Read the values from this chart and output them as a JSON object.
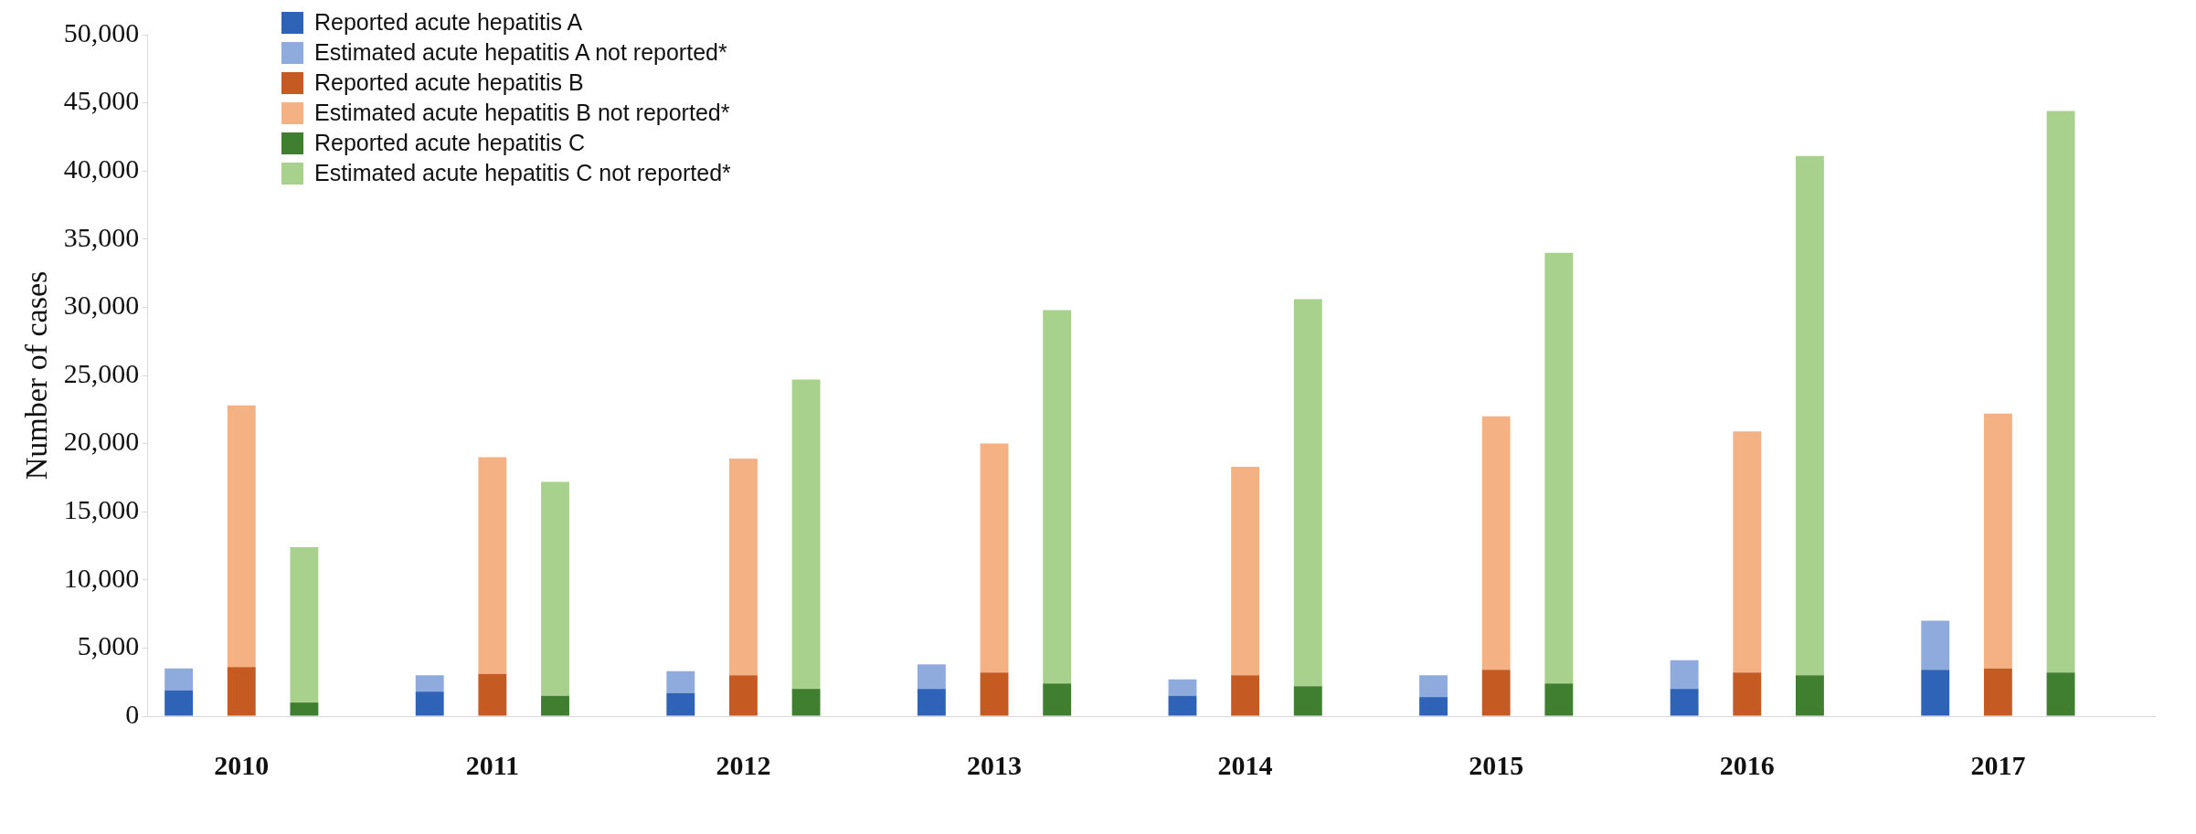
{
  "chart_data": {
    "type": "bar",
    "ylabel": "Number of cases",
    "categories": [
      null,
      "2010",
      null,
      null,
      null,
      "2011",
      null,
      null,
      null,
      "2012",
      null,
      null,
      null,
      "2013",
      null,
      null,
      null,
      "2014",
      null,
      null,
      null,
      "2015",
      null,
      null,
      null,
      "2016",
      null,
      null,
      null,
      "2017",
      null,
      null
    ],
    "series": [
      {
        "name": "Reported acute hepatitis A",
        "color": "#2f63b8",
        "values": [
          1900,
          null,
          null,
          null,
          1800,
          null,
          null,
          null,
          1700,
          null,
          null,
          null,
          2000,
          null,
          null,
          null,
          1500,
          null,
          null,
          null,
          1400,
          null,
          null,
          null,
          2000,
          null,
          null,
          null,
          3400,
          null,
          null,
          null
        ]
      },
      {
        "name": "Estimated acute hepatitis A not reported*",
        "color": "#8faadc",
        "values": [
          1600,
          null,
          null,
          null,
          1200,
          null,
          null,
          null,
          1600,
          null,
          null,
          null,
          1800,
          null,
          null,
          null,
          1200,
          null,
          null,
          null,
          1600,
          null,
          null,
          null,
          2100,
          null,
          null,
          null,
          3600,
          null,
          null,
          null
        ]
      },
      {
        "name": "Reported acute hepatitis B",
        "color": "#c55a22",
        "values": [
          null,
          3600,
          null,
          null,
          null,
          3100,
          null,
          null,
          null,
          3000,
          null,
          null,
          null,
          3200,
          null,
          null,
          null,
          3000,
          null,
          null,
          null,
          3400,
          null,
          null,
          null,
          3200,
          null,
          null,
          null,
          3500,
          null,
          null
        ]
      },
      {
        "name": "Estimated acute hepatitis B not reported*",
        "color": "#f4b183",
        "values": [
          null,
          19200,
          null,
          null,
          null,
          15900,
          null,
          null,
          null,
          15900,
          null,
          null,
          null,
          16800,
          null,
          null,
          null,
          15300,
          null,
          null,
          null,
          18600,
          null,
          null,
          null,
          17700,
          null,
          null,
          null,
          18700,
          null,
          null
        ]
      },
      {
        "name": "Reported acute hepatitis C",
        "color": "#3f7f2f",
        "values": [
          null,
          null,
          1000,
          null,
          null,
          null,
          1500,
          null,
          null,
          null,
          2000,
          null,
          null,
          null,
          2400,
          null,
          null,
          null,
          2200,
          null,
          null,
          null,
          2400,
          null,
          null,
          null,
          3000,
          null,
          null,
          null,
          3200,
          null
        ]
      },
      {
        "name": "Estimated acute hepatitis C not reported*",
        "color": "#a9d18e",
        "values": [
          null,
          null,
          11400,
          null,
          null,
          null,
          15700,
          null,
          null,
          null,
          22700,
          null,
          null,
          null,
          27400,
          null,
          null,
          null,
          28400,
          null,
          null,
          null,
          31600,
          null,
          null,
          null,
          38100,
          null,
          null,
          null,
          41200,
          null
        ]
      }
    ],
    "stacked": true,
    "ylim": [
      0,
      50000
    ],
    "yticks": [
      {
        "value": 0,
        "label": "0"
      },
      {
        "value": 5000,
        "label": "5,000"
      },
      {
        "value": 10000,
        "label": "10,000"
      },
      {
        "value": 15000,
        "label": "15,000"
      },
      {
        "value": 20000,
        "label": "20,000"
      },
      {
        "value": 25000,
        "label": "25,000"
      },
      {
        "value": 30000,
        "label": "30,000"
      },
      {
        "value": 35000,
        "label": "35,000"
      },
      {
        "value": 40000,
        "label": "40,000"
      },
      {
        "value": 45000,
        "label": "45,000"
      },
      {
        "value": 50000,
        "label": "50,000"
      }
    ],
    "grid": false,
    "legend": "top left"
  }
}
